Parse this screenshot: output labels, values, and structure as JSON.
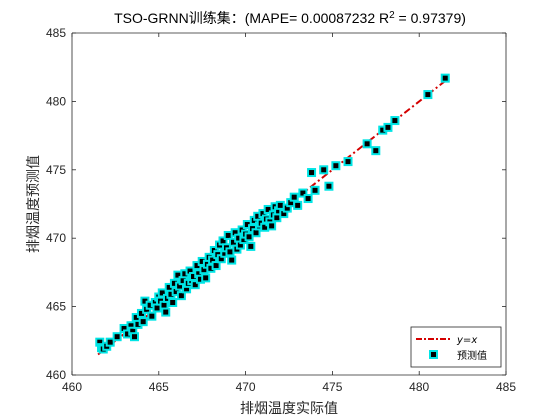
{
  "chart_data": {
    "type": "scatter",
    "title_prefix": "TSO-GRNN训练集：(MAPE= 0.00087232 R",
    "title_sup": "2",
    "title_suffix": " = 0.97379)",
    "xlabel": "排烟温度实际值",
    "ylabel": "排烟温度预测值",
    "xlim": [
      460,
      485
    ],
    "ylim": [
      460,
      485
    ],
    "xticks": [
      "460",
      "465",
      "470",
      "475",
      "480",
      "485"
    ],
    "yticks": [
      "460",
      "465",
      "470",
      "475",
      "480",
      "485"
    ],
    "legend_position": "bottom-right",
    "reference_line": {
      "name_y": "y",
      "name_eq": "=",
      "name_x": "x",
      "from": [
        461.5,
        461.5
      ],
      "to": [
        481.5,
        481.5
      ],
      "color": "#d40000",
      "style": "dash-dot"
    },
    "series": [
      {
        "name": "预测值",
        "marker_fill": "#000000",
        "marker_edge": "#00e5e5",
        "points": [
          [
            461.6,
            462.4
          ],
          [
            461.7,
            462.0
          ],
          [
            461.8,
            461.9
          ],
          [
            462.0,
            462.1
          ],
          [
            462.2,
            462.4
          ],
          [
            462.6,
            462.8
          ],
          [
            463.0,
            463.4
          ],
          [
            463.2,
            463.0
          ],
          [
            463.4,
            463.6
          ],
          [
            463.5,
            463.2
          ],
          [
            463.6,
            462.8
          ],
          [
            463.7,
            464.2
          ],
          [
            463.8,
            463.7
          ],
          [
            464.0,
            464.5
          ],
          [
            464.1,
            463.9
          ],
          [
            464.2,
            465.4
          ],
          [
            464.3,
            464.8
          ],
          [
            464.5,
            465.1
          ],
          [
            464.6,
            464.3
          ],
          [
            464.8,
            465.3
          ],
          [
            464.9,
            464.9
          ],
          [
            465.0,
            465.7
          ],
          [
            465.1,
            465.4
          ],
          [
            465.2,
            466.0
          ],
          [
            465.3,
            465.1
          ],
          [
            465.4,
            464.6
          ],
          [
            465.5,
            465.6
          ],
          [
            465.6,
            466.4
          ],
          [
            465.7,
            465.9
          ],
          [
            465.8,
            465.3
          ],
          [
            465.9,
            466.7
          ],
          [
            466.0,
            466.1
          ],
          [
            466.1,
            467.3
          ],
          [
            466.2,
            466.5
          ],
          [
            466.3,
            465.8
          ],
          [
            466.4,
            466.9
          ],
          [
            466.5,
            467.4
          ],
          [
            466.6,
            466.3
          ],
          [
            466.7,
            466.7
          ],
          [
            466.8,
            467.6
          ],
          [
            466.9,
            466.9
          ],
          [
            467.0,
            467.2
          ],
          [
            467.1,
            466.6
          ],
          [
            467.2,
            468.0
          ],
          [
            467.3,
            467.4
          ],
          [
            467.4,
            467.0
          ],
          [
            467.5,
            468.3
          ],
          [
            467.6,
            467.7
          ],
          [
            467.7,
            467.1
          ],
          [
            467.8,
            468.1
          ],
          [
            467.9,
            468.6
          ],
          [
            468.0,
            467.8
          ],
          [
            468.1,
            468.4
          ],
          [
            468.2,
            469.1
          ],
          [
            468.3,
            468.0
          ],
          [
            468.4,
            468.8
          ],
          [
            468.5,
            469.5
          ],
          [
            468.6,
            468.5
          ],
          [
            468.7,
            469.8
          ],
          [
            468.8,
            468.9
          ],
          [
            468.9,
            469.3
          ],
          [
            469.0,
            470.2
          ],
          [
            469.1,
            469.0
          ],
          [
            469.2,
            468.4
          ],
          [
            469.3,
            469.7
          ],
          [
            469.4,
            470.4
          ],
          [
            469.5,
            469.2
          ],
          [
            469.6,
            470.0
          ],
          [
            469.7,
            469.5
          ],
          [
            469.8,
            470.6
          ],
          [
            469.9,
            469.9
          ],
          [
            470.0,
            470.3
          ],
          [
            470.1,
            471.0
          ],
          [
            470.2,
            470.1
          ],
          [
            470.3,
            469.4
          ],
          [
            470.4,
            470.7
          ],
          [
            470.5,
            471.3
          ],
          [
            470.6,
            470.4
          ],
          [
            470.7,
            471.6
          ],
          [
            470.8,
            470.9
          ],
          [
            470.9,
            471.1
          ],
          [
            471.0,
            471.8
          ],
          [
            471.1,
            470.8
          ],
          [
            471.2,
            471.4
          ],
          [
            471.3,
            472.1
          ],
          [
            471.4,
            471.2
          ],
          [
            471.5,
            470.9
          ],
          [
            471.6,
            471.7
          ],
          [
            471.7,
            472.3
          ],
          [
            471.8,
            471.5
          ],
          [
            471.9,
            472.0
          ],
          [
            472.0,
            472.4
          ],
          [
            472.2,
            471.8
          ],
          [
            472.4,
            472.2
          ],
          [
            472.6,
            472.6
          ],
          [
            472.8,
            473.0
          ],
          [
            473.0,
            472.4
          ],
          [
            473.3,
            473.3
          ],
          [
            473.6,
            472.9
          ],
          [
            473.8,
            474.8
          ],
          [
            474.0,
            473.5
          ],
          [
            474.5,
            475.0
          ],
          [
            474.8,
            473.8
          ],
          [
            475.2,
            475.3
          ],
          [
            475.9,
            475.6
          ],
          [
            477.0,
            476.9
          ],
          [
            477.5,
            476.4
          ],
          [
            477.9,
            477.9
          ],
          [
            478.2,
            478.1
          ],
          [
            478.6,
            478.6
          ],
          [
            480.5,
            480.5
          ],
          [
            481.5,
            481.7
          ]
        ]
      }
    ]
  }
}
